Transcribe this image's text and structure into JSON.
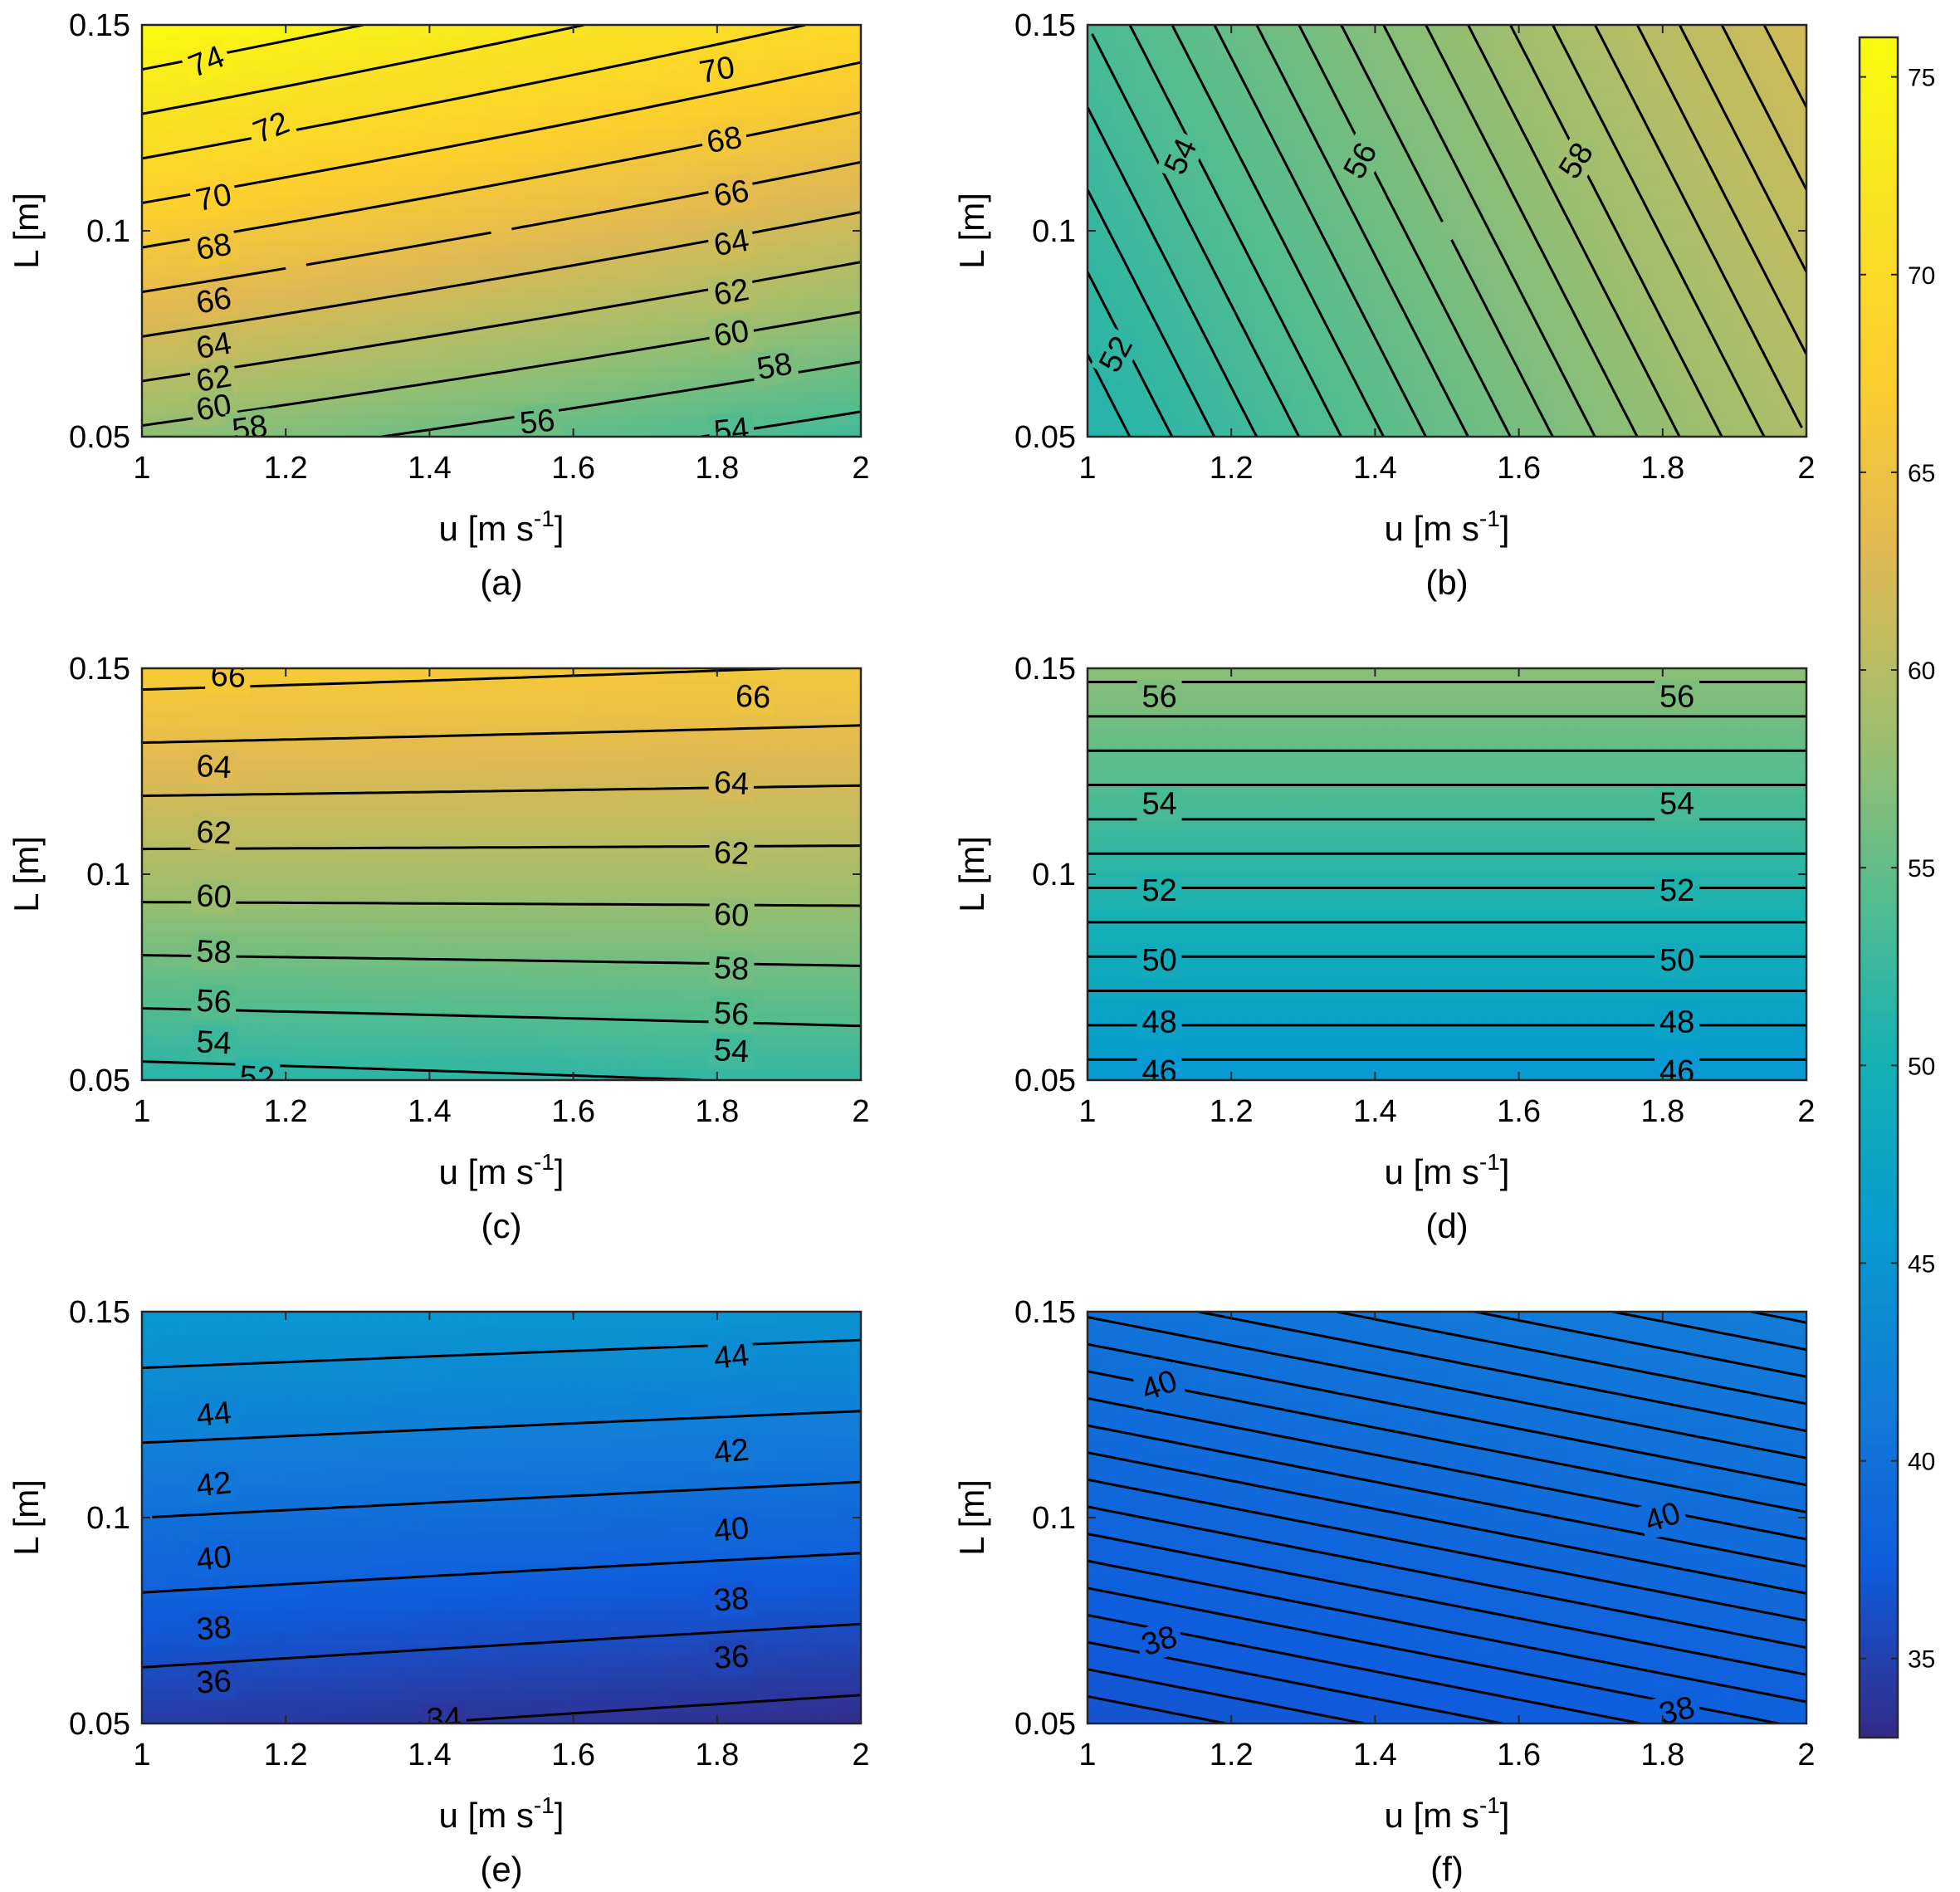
{
  "colorbar": {
    "min": 33,
    "max": 76,
    "ticks": [
      "35",
      "40",
      "45",
      "50",
      "55",
      "60",
      "65",
      "70",
      "75"
    ],
    "tick_values": [
      35,
      40,
      45,
      50,
      55,
      60,
      65,
      70,
      75
    ]
  },
  "chart_data": [
    {
      "panel": "a",
      "caption": "(a)",
      "type": "contour",
      "xlabel": "u [m s",
      "xlabel_sup": "-1",
      "xlabel_end": "]",
      "ylabel": "L [m]",
      "xlim": [
        1,
        2
      ],
      "ylim": [
        0.05,
        0.15
      ],
      "x_ticks": [
        "1",
        "1.2",
        "1.4",
        "1.6",
        "1.8",
        "2"
      ],
      "y_ticks": [
        "0.05",
        "0.1",
        "0.15"
      ],
      "corners": {
        "bl": 57.5,
        "br": 53.0,
        "tl": 76.0,
        "tr": 69.5
      },
      "levels": [
        54,
        56,
        58,
        60,
        62,
        64,
        66,
        68,
        70,
        72,
        74
      ],
      "labels": [
        {
          "text": "74",
          "u": 1.09,
          "L": 0.141,
          "angle": 22
        },
        {
          "text": "72",
          "u": 1.18,
          "L": 0.125,
          "angle": 22
        },
        {
          "text": "70",
          "u": 1.1,
          "L": 0.108,
          "angle": 12
        },
        {
          "text": "68",
          "u": 1.1,
          "L": 0.096,
          "angle": 10
        },
        {
          "text": "66",
          "u": 1.1,
          "L": 0.083,
          "angle": 10
        },
        {
          "text": "64",
          "u": 1.1,
          "L": 0.072,
          "angle": 10
        },
        {
          "text": "62",
          "u": 1.1,
          "L": 0.064,
          "angle": 10
        },
        {
          "text": "60",
          "u": 1.1,
          "L": 0.057,
          "angle": 10
        },
        {
          "text": "58",
          "u": 1.15,
          "L": 0.052,
          "angle": 8
        },
        {
          "text": "56",
          "u": 1.55,
          "L": 0.0535,
          "angle": 6
        },
        {
          "text": "54",
          "u": 1.82,
          "L": 0.0515,
          "angle": 6
        },
        {
          "text": "70",
          "u": 1.8,
          "L": 0.139,
          "angle": 10
        },
        {
          "text": "68",
          "u": 1.81,
          "L": 0.122,
          "angle": 10
        },
        {
          "text": "66",
          "u": 1.82,
          "L": 0.109,
          "angle": 10
        },
        {
          "text": "64",
          "u": 1.82,
          "L": 0.097,
          "angle": 10
        },
        {
          "text": "62",
          "u": 1.82,
          "L": 0.085,
          "angle": 10
        },
        {
          "text": "60",
          "u": 1.82,
          "L": 0.075,
          "angle": 10
        },
        {
          "text": "58",
          "u": 1.88,
          "L": 0.067,
          "angle": 10
        }
      ]
    },
    {
      "panel": "b",
      "caption": "(b)",
      "type": "contour",
      "xlabel": "u [m s",
      "xlabel_sup": "-1",
      "xlabel_end": "]",
      "ylabel": "L [m]",
      "xlim": [
        1,
        2
      ],
      "ylim": [
        0.05,
        0.15
      ],
      "x_ticks": [
        "1",
        "1.2",
        "1.4",
        "1.6",
        "1.8",
        "2"
      ],
      "y_ticks": [
        "0.05",
        "0.1",
        "0.15"
      ],
      "corners": {
        "bl": 51.0,
        "br": 59.5,
        "tl": 53.5,
        "tr": 62.0
      },
      "levels": [
        51.5,
        52,
        52.5,
        53,
        53.5,
        54,
        54.5,
        55,
        55.5,
        56,
        56.5,
        57,
        57.5,
        58,
        58.5,
        59,
        59.5,
        60,
        60.5,
        61,
        61.5
      ],
      "labels": [
        {
          "text": "54",
          "u": 1.13,
          "L": 0.118,
          "angle": 65
        },
        {
          "text": "56",
          "u": 1.38,
          "L": 0.117,
          "angle": 62
        },
        {
          "text": "58",
          "u": 1.68,
          "L": 0.117,
          "angle": 58
        },
        {
          "text": "52",
          "u": 1.04,
          "L": 0.07,
          "angle": 62
        }
      ]
    },
    {
      "panel": "c",
      "caption": "(c)",
      "type": "contour",
      "xlabel": "u [m s",
      "xlabel_sup": "-1",
      "xlabel_end": "]",
      "ylabel": "L [m]",
      "xlim": [
        1,
        2
      ],
      "ylim": [
        0.05,
        0.15
      ],
      "x_ticks": [
        "1",
        "1.2",
        "1.4",
        "1.6",
        "1.8",
        "2"
      ],
      "y_ticks": [
        "0.05",
        "0.1",
        "0.15"
      ],
      "corners": {
        "bl": 51.3,
        "br": 52.2,
        "tl": 66.8,
        "tr": 65.9
      },
      "levels": [
        52,
        54,
        56,
        58,
        60,
        62,
        64,
        66
      ],
      "labels": [
        {
          "text": "66",
          "u": 1.12,
          "L": 0.148,
          "angle": -3
        },
        {
          "text": "64",
          "u": 1.1,
          "L": 0.126,
          "angle": -3
        },
        {
          "text": "62",
          "u": 1.1,
          "L": 0.11,
          "angle": -3
        },
        {
          "text": "60",
          "u": 1.1,
          "L": 0.0945,
          "angle": -3
        },
        {
          "text": "58",
          "u": 1.1,
          "L": 0.081,
          "angle": -3
        },
        {
          "text": "56",
          "u": 1.1,
          "L": 0.069,
          "angle": -3
        },
        {
          "text": "54",
          "u": 1.1,
          "L": 0.059,
          "angle": -3
        },
        {
          "text": "52",
          "u": 1.16,
          "L": 0.0505,
          "angle": -3
        },
        {
          "text": "66",
          "u": 1.85,
          "L": 0.143,
          "angle": -3
        },
        {
          "text": "64",
          "u": 1.82,
          "L": 0.122,
          "angle": -3
        },
        {
          "text": "62",
          "u": 1.82,
          "L": 0.105,
          "angle": -3
        },
        {
          "text": "60",
          "u": 1.82,
          "L": 0.09,
          "angle": -3
        },
        {
          "text": "58",
          "u": 1.82,
          "L": 0.077,
          "angle": -3
        },
        {
          "text": "56",
          "u": 1.82,
          "L": 0.066,
          "angle": -3
        },
        {
          "text": "54",
          "u": 1.82,
          "L": 0.057,
          "angle": -3
        }
      ]
    },
    {
      "panel": "d",
      "caption": "(d)",
      "type": "contour",
      "xlabel": "u [m s",
      "xlabel_sup": "-1",
      "xlabel_end": "]",
      "ylabel": "L [m]",
      "xlim": [
        1,
        2
      ],
      "ylim": [
        0.05,
        0.15
      ],
      "x_ticks": [
        "1",
        "1.2",
        "1.4",
        "1.6",
        "1.8",
        "2"
      ],
      "y_ticks": [
        "0.05",
        "0.1",
        "0.15"
      ],
      "corners": {
        "bl": 45.4,
        "br": 45.4,
        "tl": 57.4,
        "tr": 57.4
      },
      "levels": [
        46,
        47,
        48,
        49,
        50,
        51,
        52,
        53,
        54,
        55,
        56,
        57
      ],
      "labels": [
        {
          "text": "56",
          "u": 1.1,
          "L": 0.143,
          "angle": 0
        },
        {
          "text": "54",
          "u": 1.1,
          "L": 0.117,
          "angle": 0
        },
        {
          "text": "52",
          "u": 1.1,
          "L": 0.096,
          "angle": 0
        },
        {
          "text": "50",
          "u": 1.1,
          "L": 0.079,
          "angle": 0
        },
        {
          "text": "48",
          "u": 1.1,
          "L": 0.064,
          "angle": 0
        },
        {
          "text": "46",
          "u": 1.1,
          "L": 0.052,
          "angle": 0
        },
        {
          "text": "56",
          "u": 1.82,
          "L": 0.143,
          "angle": 0
        },
        {
          "text": "54",
          "u": 1.82,
          "L": 0.117,
          "angle": 0
        },
        {
          "text": "52",
          "u": 1.82,
          "L": 0.096,
          "angle": 0
        },
        {
          "text": "50",
          "u": 1.82,
          "L": 0.079,
          "angle": 0
        },
        {
          "text": "48",
          "u": 1.82,
          "L": 0.064,
          "angle": 0
        },
        {
          "text": "46",
          "u": 1.82,
          "L": 0.052,
          "angle": 0
        }
      ]
    },
    {
      "panel": "e",
      "caption": "(e)",
      "type": "contour",
      "xlabel": "u [m s",
      "xlabel_sup": "-1",
      "xlabel_end": "]",
      "ylabel": "L [m]",
      "xlim": [
        1,
        2
      ],
      "ylim": [
        0.05,
        0.15
      ],
      "x_ticks": [
        "1",
        "1.2",
        "1.4",
        "1.6",
        "1.8",
        "2"
      ],
      "y_ticks": [
        "0.05",
        "0.1",
        "0.15"
      ],
      "corners": {
        "bl": 34.5,
        "br": 33.2,
        "tl": 45.5,
        "tr": 44.8
      },
      "levels": [
        34,
        36,
        38,
        40,
        42,
        44
      ],
      "labels": [
        {
          "text": "44",
          "u": 1.1,
          "L": 0.125,
          "angle": 6
        },
        {
          "text": "42",
          "u": 1.1,
          "L": 0.108,
          "angle": 6
        },
        {
          "text": "40",
          "u": 1.1,
          "L": 0.09,
          "angle": 6
        },
        {
          "text": "38",
          "u": 1.1,
          "L": 0.073,
          "angle": 4
        },
        {
          "text": "36",
          "u": 1.1,
          "L": 0.06,
          "angle": 3
        },
        {
          "text": "34",
          "u": 1.42,
          "L": 0.051,
          "angle": 2
        },
        {
          "text": "44",
          "u": 1.82,
          "L": 0.139,
          "angle": 6
        },
        {
          "text": "42",
          "u": 1.82,
          "L": 0.116,
          "angle": 6
        },
        {
          "text": "40",
          "u": 1.82,
          "L": 0.097,
          "angle": 6
        },
        {
          "text": "38",
          "u": 1.82,
          "L": 0.08,
          "angle": 4
        },
        {
          "text": "36",
          "u": 1.82,
          "L": 0.066,
          "angle": 3
        }
      ]
    },
    {
      "panel": "f",
      "caption": "(f)",
      "type": "contour",
      "xlabel": "u [m s",
      "xlabel_sup": "-1",
      "xlabel_end": "]",
      "ylabel": "L [m]",
      "xlim": [
        1,
        2
      ],
      "ylim": [
        0.05,
        0.15
      ],
      "x_ticks": [
        "1",
        "1.2",
        "1.4",
        "1.6",
        "1.8",
        "2"
      ],
      "y_ticks": [
        "0.05",
        "0.1",
        "0.15"
      ],
      "corners": {
        "bl": 36.5,
        "br": 37.8,
        "tl": 40.3,
        "tr": 41.6
      },
      "levels": [
        36.75,
        37,
        37.25,
        37.5,
        37.75,
        38,
        38.25,
        38.5,
        38.75,
        39,
        39.25,
        39.5,
        39.75,
        40,
        40.25,
        40.5,
        40.75,
        41,
        41.25,
        41.5
      ],
      "labels": [
        {
          "text": "40",
          "u": 1.1,
          "L": 0.132,
          "angle": 20
        },
        {
          "text": "38",
          "u": 1.1,
          "L": 0.07,
          "angle": 18
        },
        {
          "text": "40",
          "u": 1.8,
          "L": 0.1,
          "angle": 18
        },
        {
          "text": "38",
          "u": 1.82,
          "L": 0.053,
          "angle": 14
        }
      ]
    }
  ]
}
